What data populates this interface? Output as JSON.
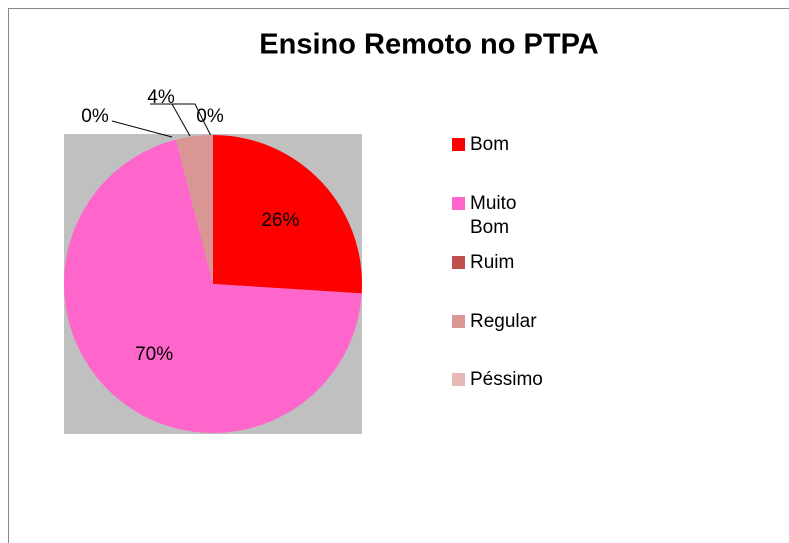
{
  "chart_data": {
    "type": "pie",
    "title": "Ensino Remoto no PTPA",
    "categories": [
      "Bom",
      "Muito Bom",
      "Ruim",
      "Regular",
      "Péssimo"
    ],
    "values": [
      26,
      70,
      0,
      4,
      0
    ],
    "value_labels": [
      "26%",
      "70%",
      "0%",
      "4%",
      "0%"
    ],
    "colors": [
      "#ff0000",
      "#ff66cc",
      "#c0504d",
      "#d99694",
      "#e6b9b8"
    ],
    "legend": "right"
  }
}
